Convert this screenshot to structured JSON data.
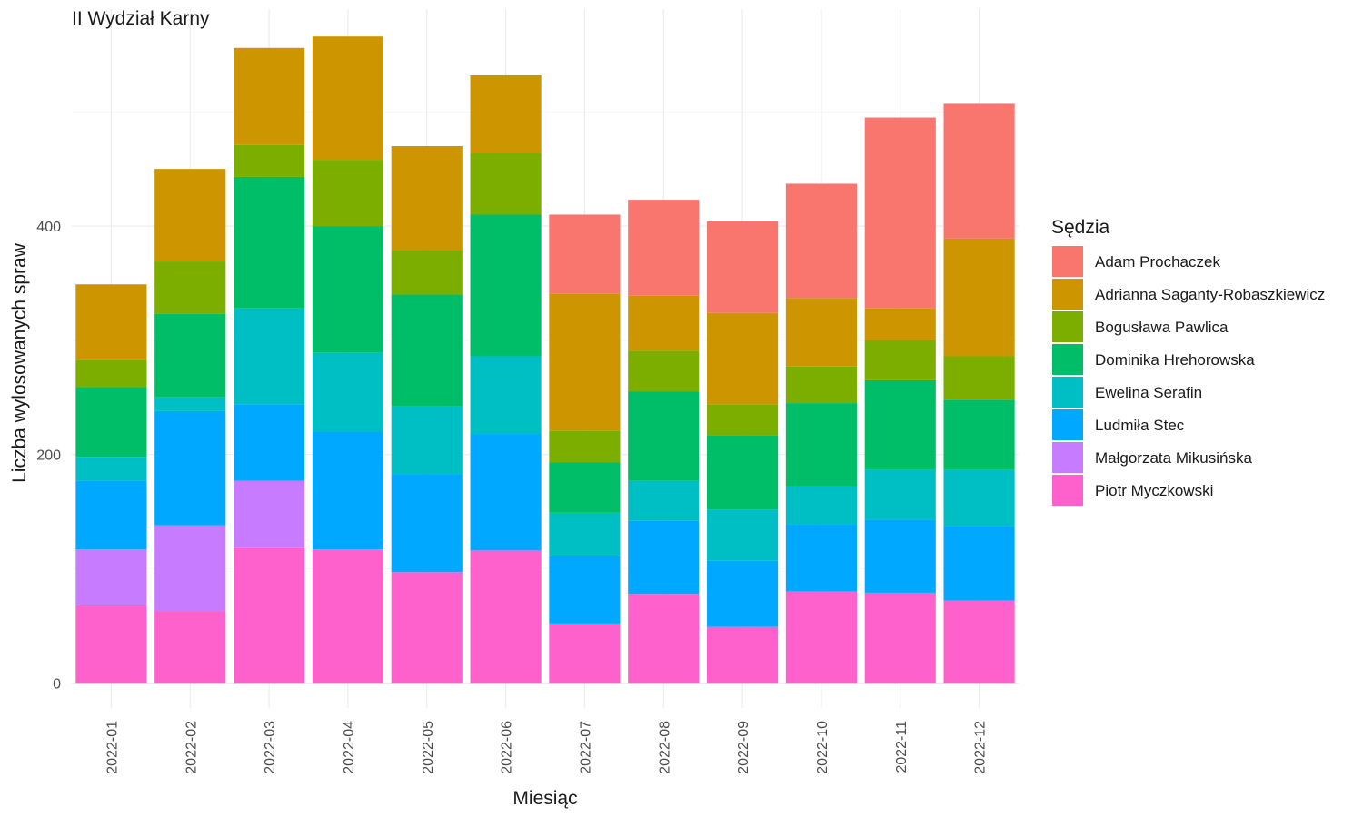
{
  "chart_data": {
    "type": "bar",
    "stacked": true,
    "title": "II Wydział Karny",
    "xlabel": "Miesiąc",
    "ylabel": "Liczba wylosowanych spraw",
    "ylim": [
      -22,
      590
    ],
    "yticks": [
      0,
      200,
      400
    ],
    "grid": true,
    "legend_title": "Sędzia",
    "legend_position": "right",
    "categories": [
      "2022-01",
      "2022-02",
      "2022-03",
      "2022-04",
      "2022-05",
      "2022-06",
      "2022-07",
      "2022-08",
      "2022-09",
      "2022-10",
      "2022-11",
      "2022-12"
    ],
    "series": [
      {
        "name": "Piotr Myczkowski",
        "color": "#FF61CC",
        "values": [
          68,
          63,
          118,
          117,
          97,
          116,
          52,
          78,
          49,
          80,
          79,
          72
        ]
      },
      {
        "name": "Małgorzata Mikusińska",
        "color": "#C77CFF",
        "values": [
          49,
          75,
          59,
          0,
          0,
          0,
          0,
          0,
          0,
          0,
          0,
          0
        ]
      },
      {
        "name": "Ludmiła Stec",
        "color": "#00A9FF",
        "values": [
          60,
          100,
          67,
          103,
          86,
          102,
          59,
          64,
          58,
          59,
          64,
          65
        ]
      },
      {
        "name": "Ewelina Serafin",
        "color": "#00BFC4",
        "values": [
          21,
          12,
          84,
          69,
          59,
          68,
          38,
          35,
          45,
          33,
          44,
          50
        ]
      },
      {
        "name": "Dominika Hrehorowska",
        "color": "#00BE67",
        "values": [
          61,
          73,
          115,
          111,
          98,
          124,
          44,
          78,
          65,
          73,
          78,
          61
        ]
      },
      {
        "name": "Bogusława Pawlica",
        "color": "#7CAE00",
        "values": [
          24,
          46,
          28,
          58,
          39,
          54,
          28,
          36,
          27,
          32,
          35,
          38
        ]
      },
      {
        "name": "Adrianna Saganty-Robaszkiewicz",
        "color": "#CD9600",
        "values": [
          66,
          81,
          85,
          108,
          91,
          68,
          120,
          48,
          80,
          60,
          28,
          103
        ]
      },
      {
        "name": "Adam Prochaczek",
        "color": "#F8766D",
        "values": [
          0,
          0,
          0,
          0,
          0,
          0,
          69,
          84,
          80,
          100,
          167,
          118
        ]
      }
    ]
  }
}
